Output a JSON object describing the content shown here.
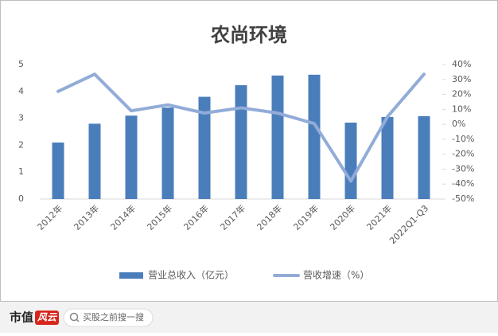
{
  "chart_data": {
    "type": "bar-line",
    "title": "农尚环境",
    "categories": [
      "2012年",
      "2013年",
      "2014年",
      "2015年",
      "2016年",
      "2017年",
      "2018年",
      "2019年",
      "2020年",
      "2021年",
      "2022Q1-Q3"
    ],
    "series": [
      {
        "name": "营业总收入（亿元）",
        "type": "bar",
        "color": "#4a7ebb",
        "values": [
          2.1,
          2.8,
          3.1,
          3.4,
          3.8,
          4.23,
          4.59,
          4.62,
          2.84,
          3.05,
          3.08
        ]
      },
      {
        "name": "营收增速（%）",
        "type": "line",
        "axis": "y2",
        "color": "#92acd8",
        "values": [
          22,
          33.5,
          9,
          13,
          7.5,
          11,
          7.5,
          0.5,
          -38,
          5,
          33.5
        ]
      }
    ],
    "ylim": [
      0,
      5
    ],
    "yticks": [
      0,
      1,
      2,
      3,
      4,
      5
    ],
    "y2lim": [
      -50,
      40
    ],
    "y2ticks": [
      {
        "value": 40,
        "label": "40%"
      },
      {
        "value": 30,
        "label": "30%"
      },
      {
        "value": 20,
        "label": "20%"
      },
      {
        "value": 10,
        "label": "10%"
      },
      {
        "value": 0,
        "label": "0%"
      },
      {
        "value": -10,
        "label": "-10%"
      },
      {
        "value": -20,
        "label": "-20%"
      },
      {
        "value": -30,
        "label": "-30%"
      },
      {
        "value": -40,
        "label": "-40%"
      },
      {
        "value": -50,
        "label": "-50%"
      }
    ],
    "grid": false,
    "legend": "bottom"
  },
  "footer": {
    "brand": "市值",
    "brand_mark": "风云",
    "search": "买股之前搜一搜"
  }
}
